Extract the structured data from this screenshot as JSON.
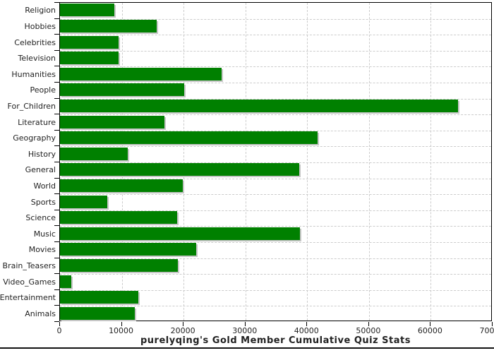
{
  "chart_data": {
    "type": "bar",
    "orientation": "horizontal",
    "title": "purelyqing's Gold Member Cumulative Quiz Stats",
    "xlabel": "",
    "ylabel": "",
    "xlim": [
      0,
      70000
    ],
    "x_ticks": [
      0,
      10000,
      20000,
      30000,
      40000,
      50000,
      60000,
      70000
    ],
    "x_tick_labels": [
      "0",
      "10000",
      "20000",
      "30000",
      "40000",
      "50000",
      "60000",
      "70000"
    ],
    "grid": "dashed, light gray, vertical at each x tick and horizontal at category boundaries",
    "legend_position": "none",
    "bar_color": "#008000",
    "bar_shadow_color": "#c6c6c6",
    "categories": [
      "Religion",
      "Hobbies",
      "Celebrities",
      "Television",
      "Humanities",
      "People",
      "For_Children",
      "Literature",
      "Geography",
      "History",
      "General",
      "World",
      "Sports",
      "Science",
      "Music",
      "Movies",
      "Brain_Teasers",
      "Video_Games",
      "Entertainment",
      "Animals"
    ],
    "values": [
      8800,
      15700,
      9500,
      9500,
      26100,
      20100,
      64400,
      16900,
      41700,
      11000,
      38700,
      19900,
      7700,
      18900,
      38800,
      22000,
      19100,
      1800,
      12650,
      12100
    ]
  }
}
